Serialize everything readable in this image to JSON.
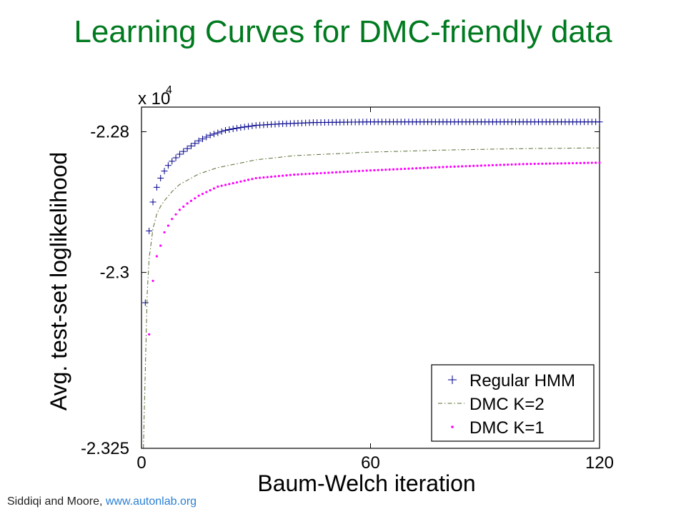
{
  "slide": {
    "title": "Learning Curves for DMC-friendly data",
    "footer_text": "Siddiqi and Moore,",
    "footer_link": "www.autonlab.org"
  },
  "colors": {
    "title": "#007a1f",
    "regular_hmm": "#00008b",
    "dmc_k2": "#556b2f",
    "dmc_k1": "#ff00ff",
    "footer_link": "#2a7fd4"
  },
  "chart_data": {
    "type": "line",
    "xlabel": "Baum-Welch iteration",
    "ylabel": "Avg. test-set loglikelihood",
    "y_multiplier_label": "x 10",
    "y_multiplier_exponent": "4",
    "xlim": [
      0,
      120
    ],
    "ylim": [
      -2.325,
      -2.2765
    ],
    "x_ticks": [
      0,
      60,
      120
    ],
    "x_tick_labels": [
      "0",
      "60",
      "120"
    ],
    "y_ticks": [
      -2.28,
      -2.3,
      -2.325
    ],
    "y_tick_labels": [
      "-2.28",
      "-2.3",
      "-2.325"
    ],
    "legend_position": "bottom-right",
    "series": [
      {
        "name": "Regular HMM",
        "marker": "plus",
        "start": 1,
        "end": 120,
        "step": 1,
        "curve_points": [
          [
            1,
            -2.3043
          ],
          [
            2,
            -2.2941
          ],
          [
            3,
            -2.29
          ],
          [
            4,
            -2.2879
          ],
          [
            5,
            -2.2866
          ],
          [
            6,
            -2.2856
          ],
          [
            7,
            -2.2848
          ],
          [
            8,
            -2.2842
          ],
          [
            10,
            -2.2832
          ],
          [
            12,
            -2.2824
          ],
          [
            15,
            -2.2813
          ],
          [
            18,
            -2.2805
          ],
          [
            22,
            -2.2798
          ],
          [
            26,
            -2.2794
          ],
          [
            30,
            -2.2791
          ],
          [
            36,
            -2.2789
          ],
          [
            45,
            -2.2787
          ],
          [
            60,
            -2.2786
          ],
          [
            120,
            -2.2786
          ]
        ]
      },
      {
        "name": "DMC K=2",
        "marker": "dash-dot",
        "start": 1,
        "end": 120,
        "step": 1,
        "curve_points": [
          [
            0.5,
            -2.325
          ],
          [
            1,
            -2.314
          ],
          [
            1.5,
            -2.303
          ],
          [
            2,
            -2.298
          ],
          [
            3,
            -2.2938
          ],
          [
            4,
            -2.2917
          ],
          [
            5,
            -2.2906
          ],
          [
            6,
            -2.2898
          ],
          [
            8,
            -2.2885
          ],
          [
            10,
            -2.2875
          ],
          [
            15,
            -2.286
          ],
          [
            20,
            -2.2851
          ],
          [
            30,
            -2.284
          ],
          [
            40,
            -2.2834
          ],
          [
            60,
            -2.2829
          ],
          [
            80,
            -2.2826
          ],
          [
            100,
            -2.2824
          ],
          [
            120,
            -2.2823
          ]
        ]
      },
      {
        "name": "DMC K=1",
        "marker": "dot",
        "start": 2,
        "end": 120,
        "step": 1,
        "curve_points": [
          [
            2,
            -2.3088
          ],
          [
            3,
            -2.3012
          ],
          [
            4,
            -2.2977
          ],
          [
            5,
            -2.2962
          ],
          [
            6,
            -2.2943
          ],
          [
            8,
            -2.2924
          ],
          [
            10,
            -2.2911
          ],
          [
            12,
            -2.2902
          ],
          [
            15,
            -2.2891
          ],
          [
            20,
            -2.2878
          ],
          [
            30,
            -2.2866
          ],
          [
            40,
            -2.2861
          ],
          [
            50,
            -2.2858
          ],
          [
            60,
            -2.2855
          ],
          [
            80,
            -2.285
          ],
          [
            100,
            -2.2846
          ],
          [
            120,
            -2.2844
          ]
        ]
      }
    ]
  }
}
